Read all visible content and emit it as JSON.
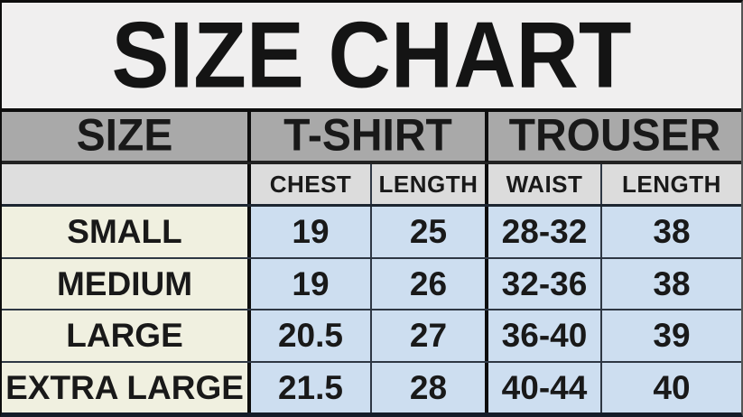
{
  "title": "SIZE CHART",
  "table": {
    "groups": [
      {
        "label": "SIZE"
      },
      {
        "label": "T-SHIRT"
      },
      {
        "label": "TROUSER"
      }
    ],
    "subheaders": [
      "CHEST",
      "LENGTH",
      "WAIST",
      "LENGTH"
    ],
    "rows": [
      {
        "size": "SMALL",
        "chest": "19",
        "length": "25",
        "waist": "28-32",
        "trouser_length": "38"
      },
      {
        "size": "MEDIUM",
        "chest": "19",
        "length": "26",
        "waist": "32-36",
        "trouser_length": "38"
      },
      {
        "size": "LARGE",
        "chest": "20.5",
        "length": "27",
        "waist": "36-40",
        "trouser_length": "39"
      },
      {
        "size": "EXTRA LARGE",
        "chest": "21.5",
        "length": "28",
        "waist": "40-44",
        "trouser_length": "40"
      }
    ]
  },
  "colors": {
    "title_background": "#f0efef",
    "group_header_background": "#a9a9a9",
    "subheader_background": "#dcdcdc",
    "size_column_background": "#f0f0e0",
    "value_cell_background": "#cddef0",
    "text": "#191919",
    "border_dark": "#0d0d0d",
    "border_navy": "#2e3744"
  },
  "chart_data": {
    "type": "table",
    "title": "SIZE CHART",
    "column_groups": [
      "SIZE",
      "T-SHIRT",
      "TROUSER"
    ],
    "columns": [
      "SIZE",
      "T-SHIRT CHEST",
      "T-SHIRT LENGTH",
      "TROUSER WAIST",
      "TROUSER LENGTH"
    ],
    "rows": [
      [
        "SMALL",
        "19",
        "25",
        "28-32",
        "38"
      ],
      [
        "MEDIUM",
        "19",
        "26",
        "32-36",
        "38"
      ],
      [
        "LARGE",
        "20.5",
        "27",
        "36-40",
        "39"
      ],
      [
        "EXTRA LARGE",
        "21.5",
        "28",
        "40-44",
        "40"
      ]
    ]
  }
}
